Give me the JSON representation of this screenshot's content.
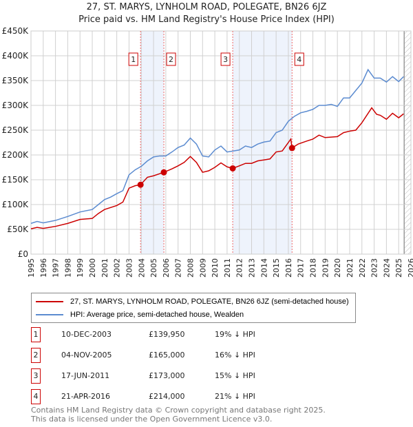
{
  "chart_data": {
    "type": "line",
    "title": "27, ST. MARYS, LYNHOLM ROAD, POLEGATE, BN26 6JZ",
    "subtitle": "Price paid vs. HM Land Registry's House Price Index (HPI)",
    "xlim": [
      1995,
      2026
    ],
    "ylim": [
      0,
      450000
    ],
    "yticks": [
      "£0",
      "£50K",
      "£100K",
      "£150K",
      "£200K",
      "£250K",
      "£300K",
      "£350K",
      "£400K",
      "£450K"
    ],
    "xticks": [
      "1995",
      "1996",
      "1997",
      "1998",
      "1999",
      "2000",
      "2001",
      "2002",
      "2003",
      "2004",
      "2005",
      "2006",
      "2007",
      "2008",
      "2009",
      "2010",
      "2011",
      "2012",
      "2013",
      "2014",
      "2015",
      "2016",
      "2017",
      "2018",
      "2019",
      "2020",
      "2021",
      "2022",
      "2023",
      "2024",
      "2025",
      "2026"
    ],
    "grid": true,
    "series": [
      {
        "name": "27, ST. MARYS, LYNHOLM ROAD, POLEGATE, BN26 6JZ (semi-detached house)",
        "color": "#cc0000",
        "x": [
          1995,
          1995.5,
          1996,
          1997,
          1998,
          1999,
          2000,
          2000.5,
          2001,
          2002,
          2002.5,
          2003,
          2003.5,
          2003.94,
          2004.5,
          2005,
          2005.84,
          2006.5,
          2007,
          2007.5,
          2008,
          2008.5,
          2009,
          2009.5,
          2010,
          2010.5,
          2011,
          2011.46,
          2012,
          2012.5,
          2013,
          2013.5,
          2014,
          2014.5,
          2015,
          2015.5,
          2016.2,
          2016.3,
          2016.8,
          2017.5,
          2018,
          2018.5,
          2019,
          2020,
          2020.5,
          2021,
          2021.5,
          2022,
          2022.8,
          2023.2,
          2023.5,
          2024,
          2024.5,
          2025,
          2025.4
        ],
        "y": [
          51000,
          54000,
          52000,
          56000,
          62000,
          70000,
          72000,
          82000,
          90000,
          98000,
          105000,
          133000,
          138000,
          139950,
          155000,
          158000,
          165000,
          172000,
          178000,
          185000,
          197000,
          185000,
          165000,
          168000,
          175000,
          184000,
          176000,
          173000,
          178000,
          183000,
          183000,
          188000,
          190000,
          192000,
          206000,
          208000,
          232000,
          214000,
          222000,
          228000,
          232000,
          240000,
          235000,
          237000,
          245000,
          248000,
          250000,
          265000,
          295000,
          282000,
          280000,
          272000,
          284000,
          275000,
          283000
        ]
      },
      {
        "name": "HPI: Average price, semi-detached house, Wealden",
        "color": "#5b8bd0",
        "x": [
          1995,
          1995.5,
          1996,
          1997,
          1998,
          1999,
          2000,
          2000.5,
          2001,
          2001.5,
          2002,
          2002.5,
          2003,
          2003.5,
          2004,
          2004.5,
          2005,
          2005.5,
          2006,
          2006.5,
          2007,
          2007.5,
          2008,
          2008.5,
          2009,
          2009.5,
          2010,
          2010.5,
          2011,
          2011.5,
          2012,
          2012.5,
          2013,
          2013.5,
          2014,
          2014.5,
          2015,
          2015.5,
          2016,
          2016.5,
          2017,
          2017.5,
          2018,
          2018.5,
          2019,
          2019.5,
          2020,
          2020.5,
          2021,
          2021.5,
          2022,
          2022.5,
          2023,
          2023.5,
          2024,
          2024.5,
          2025,
          2025.4
        ],
        "y": [
          62000,
          66000,
          63000,
          68000,
          76000,
          85000,
          90000,
          100000,
          110000,
          115000,
          122000,
          128000,
          160000,
          170000,
          177000,
          188000,
          196000,
          198000,
          198000,
          206000,
          215000,
          220000,
          234000,
          222000,
          198000,
          196000,
          210000,
          218000,
          206000,
          208000,
          210000,
          218000,
          215000,
          222000,
          226000,
          228000,
          245000,
          250000,
          268000,
          278000,
          285000,
          288000,
          292000,
          300000,
          300000,
          302000,
          298000,
          315000,
          315000,
          330000,
          345000,
          372000,
          355000,
          355000,
          347000,
          358000,
          348000,
          358000
        ]
      }
    ],
    "sales": [
      {
        "label": "1",
        "x": 2003.94,
        "y": 139950,
        "date": "10-DEC-2003",
        "price": "£139,950",
        "hpi": "19% ↓ HPI"
      },
      {
        "label": "2",
        "x": 2005.84,
        "y": 165000,
        "date": "04-NOV-2005",
        "price": "£165,000",
        "hpi": "16% ↓ HPI"
      },
      {
        "label": "3",
        "x": 2011.46,
        "y": 173000,
        "date": "17-JUN-2011",
        "price": "£173,000",
        "hpi": "15% ↓ HPI"
      },
      {
        "label": "4",
        "x": 2016.3,
        "y": 214000,
        "date": "21-APR-2016",
        "price": "£214,000",
        "hpi": "21% ↓ HPI"
      }
    ],
    "shaded": [
      [
        2003.94,
        2005.84
      ],
      [
        2011.46,
        2016.3
      ]
    ],
    "data_end": 2025.45
  },
  "footer": {
    "line1": "Contains HM Land Registry data © Crown copyright and database right 2025.",
    "line2": "This data is licensed under the Open Government Licence v3.0."
  }
}
